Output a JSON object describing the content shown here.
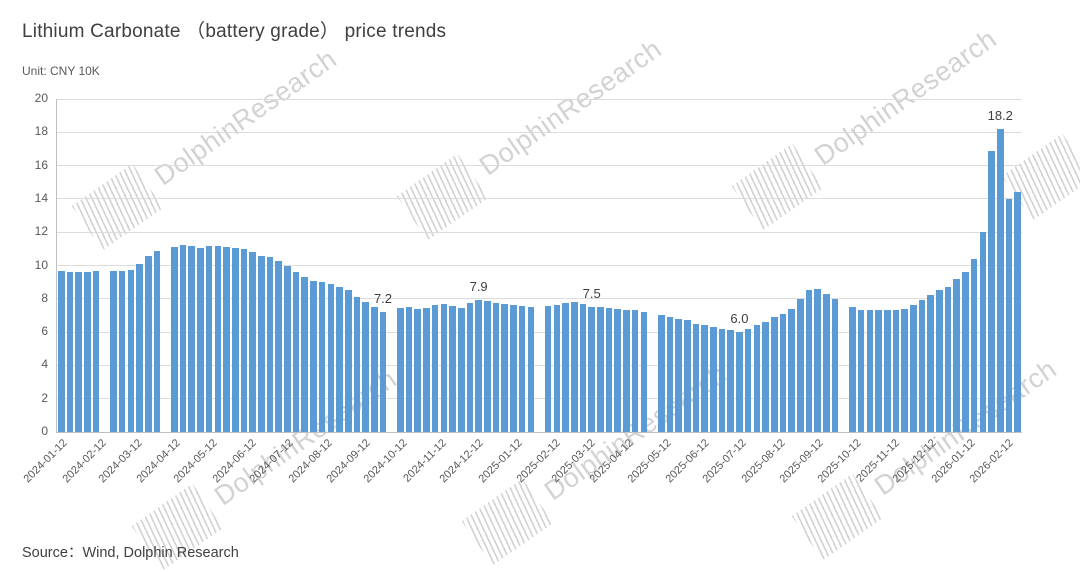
{
  "title": "Lithium Carbonate （battery grade） price trends",
  "unit_label": "Unit: CNY 10K",
  "source": "Source：Wind, Dolphin Research",
  "watermark": {
    "text": "DolphinResearch"
  },
  "colors": {
    "bar": "#5B9BD5",
    "grid": "#DCDCDC",
    "axis": "#C0C0C0",
    "text": "#595959",
    "title": "#404040",
    "watermark": "#d2d2d2"
  },
  "chart_data": {
    "type": "bar",
    "title": "Lithium Carbonate （battery grade） price trends",
    "xlabel": "",
    "ylabel": "",
    "unit": "CNY 10K",
    "grid": true,
    "ylim": [
      0,
      20
    ],
    "yticks": [
      0,
      2,
      4,
      6,
      8,
      10,
      12,
      14,
      16,
      18,
      20
    ],
    "x_tick_labels": [
      "2024-01-12",
      "2024-02-12",
      "2024-03-12",
      "2024-04-12",
      "2024-05-12",
      "2024-06-12",
      "2024-07-12",
      "2024-08-12",
      "2024-09-12",
      "2024-10-12",
      "2024-11-12",
      "2024-12-12",
      "2025-01-12",
      "2025-02-12",
      "2025-03-12",
      "2025-04-12",
      "2025-05-12",
      "2025-06-12",
      "2025-07-12",
      "2025-08-12",
      "2025-09-12",
      "2025-10-12",
      "2025-11-12",
      "2025-12-12",
      "2026-01-12",
      "2026-02-12"
    ],
    "x": [
      "2024-01-12",
      "2024-01-19",
      "2024-01-26",
      "2024-02-02",
      "2024-02-09",
      "2024-02-16",
      "2024-02-23",
      "2024-03-01",
      "2024-03-08",
      "2024-03-15",
      "2024-03-22",
      "2024-03-29",
      "2024-04-05",
      "2024-04-12",
      "2024-04-19",
      "2024-04-26",
      "2024-05-03",
      "2024-05-10",
      "2024-05-17",
      "2024-05-24",
      "2024-05-31",
      "2024-06-07",
      "2024-06-14",
      "2024-06-21",
      "2024-06-28",
      "2024-07-05",
      "2024-07-12",
      "2024-07-19",
      "2024-07-26",
      "2024-08-02",
      "2024-08-09",
      "2024-08-16",
      "2024-08-23",
      "2024-08-30",
      "2024-09-06",
      "2024-09-13",
      "2024-09-20",
      "2024-09-27",
      "2024-10-04",
      "2024-10-11",
      "2024-10-18",
      "2024-10-25",
      "2024-11-01",
      "2024-11-08",
      "2024-11-15",
      "2024-11-22",
      "2024-11-29",
      "2024-12-06",
      "2024-12-13",
      "2024-12-20",
      "2024-12-27",
      "2025-01-03",
      "2025-01-10",
      "2025-01-17",
      "2025-01-24",
      "2025-01-31",
      "2025-02-07",
      "2025-02-14",
      "2025-02-21",
      "2025-02-28",
      "2025-03-07",
      "2025-03-14",
      "2025-03-21",
      "2025-03-28",
      "2025-04-04",
      "2025-04-11",
      "2025-04-18",
      "2025-04-25",
      "2025-05-02",
      "2025-05-09",
      "2025-05-16",
      "2025-05-23",
      "2025-05-30",
      "2025-06-06",
      "2025-06-13",
      "2025-06-20",
      "2025-06-27",
      "2025-07-04",
      "2025-07-11",
      "2025-07-18",
      "2025-07-25",
      "2025-08-01",
      "2025-08-08",
      "2025-08-15",
      "2025-08-22",
      "2025-08-29",
      "2025-09-05",
      "2025-09-12",
      "2025-09-19",
      "2025-09-26",
      "2025-10-03",
      "2025-10-10",
      "2025-10-17",
      "2025-10-24",
      "2025-10-31",
      "2025-11-07",
      "2025-11-14",
      "2025-11-21",
      "2025-11-28",
      "2025-12-05",
      "2025-12-12",
      "2025-12-19",
      "2025-12-26",
      "2026-01-02",
      "2026-01-09",
      "2026-01-16",
      "2026-01-23",
      "2026-01-30",
      "2026-02-06",
      "2026-02-13",
      "2026-02-20"
    ],
    "values": [
      9.65,
      9.6,
      9.6,
      9.62,
      9.68,
      null,
      9.7,
      9.65,
      9.75,
      10.1,
      10.6,
      10.9,
      null,
      11.1,
      11.25,
      11.2,
      11.05,
      11.15,
      11.2,
      11.1,
      11.05,
      11.0,
      10.8,
      10.6,
      10.5,
      10.3,
      10.0,
      9.6,
      9.3,
      9.1,
      9.0,
      8.9,
      8.7,
      8.5,
      8.1,
      7.8,
      7.5,
      7.2,
      null,
      7.45,
      7.5,
      7.4,
      7.45,
      7.6,
      7.7,
      7.55,
      7.45,
      7.75,
      7.9,
      7.85,
      7.75,
      7.7,
      7.6,
      7.55,
      7.5,
      null,
      7.55,
      7.65,
      7.75,
      7.8,
      7.7,
      7.5,
      7.5,
      7.45,
      7.4,
      7.35,
      7.3,
      7.2,
      null,
      7.0,
      6.9,
      6.8,
      6.7,
      6.5,
      6.4,
      6.3,
      6.2,
      6.1,
      6.0,
      6.2,
      6.4,
      6.6,
      6.9,
      7.1,
      7.4,
      8.0,
      8.5,
      8.6,
      8.3,
      8.0,
      null,
      7.5,
      7.35,
      7.3,
      7.35,
      7.35,
      7.3,
      7.4,
      7.6,
      7.9,
      8.2,
      8.5,
      8.7,
      9.2,
      9.6,
      10.4,
      12.0,
      16.9,
      18.2,
      14.0,
      14.4
    ],
    "annotations": [
      {
        "x": "2024-09-27",
        "label": "7.2"
      },
      {
        "x": "2024-12-13",
        "label": "7.9"
      },
      {
        "x": "2025-03-14",
        "label": "7.5"
      },
      {
        "x": "2025-07-11",
        "label": "6.0"
      },
      {
        "x": "2026-02-06",
        "label": "18.2"
      }
    ],
    "legend": []
  }
}
